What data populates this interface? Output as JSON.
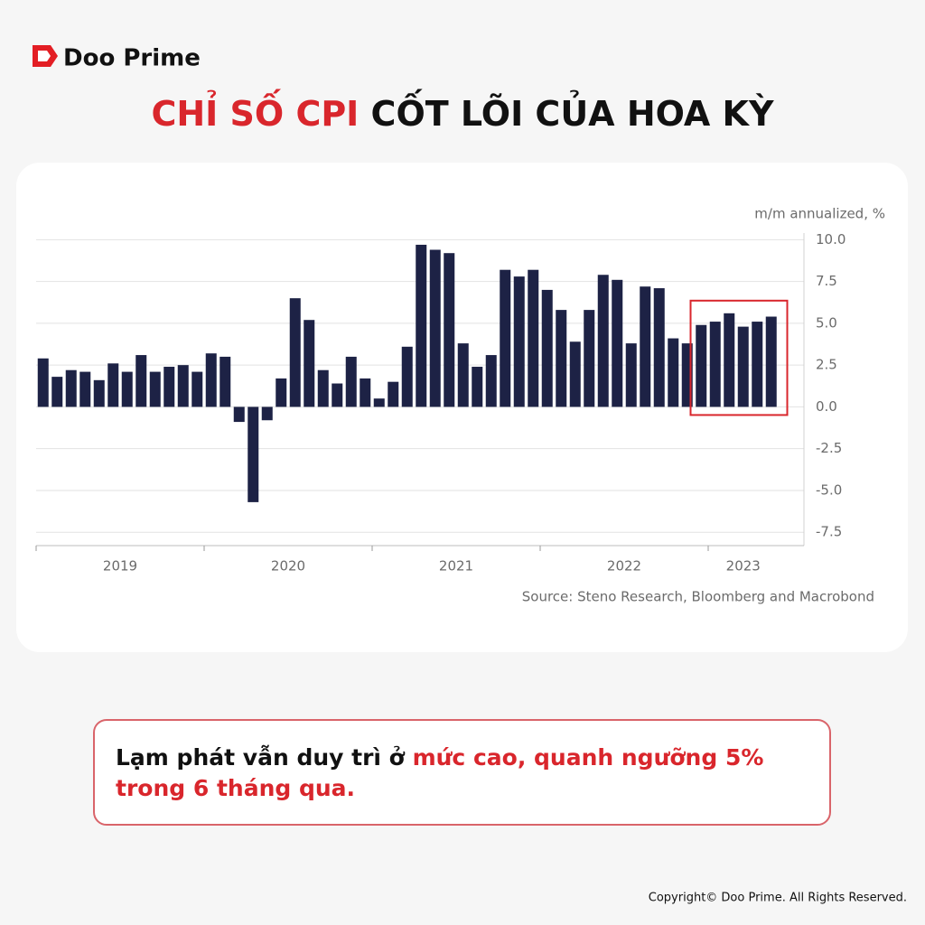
{
  "brand": "Doo Prime",
  "title": {
    "highlight": "CHỈ SỐ CPI",
    "rest": " CỐT LÕI CỦA HOA KỲ"
  },
  "chart_data": {
    "type": "bar",
    "unit_label": "m/m annualized, %",
    "source": "Source: Steno Research, Bloomberg and Macrobond",
    "categories": [
      null,
      null,
      null,
      null,
      null,
      null,
      null,
      null,
      null,
      null,
      null,
      null,
      null,
      null,
      null,
      null,
      null,
      null,
      null,
      null,
      null,
      null,
      null,
      null,
      null,
      null,
      null,
      null,
      null,
      null,
      null,
      null,
      null,
      null,
      null,
      null,
      null,
      null,
      null,
      null,
      null,
      null,
      null,
      null,
      null,
      null,
      null,
      null,
      null,
      null,
      null,
      null,
      null
    ],
    "year_labels": [
      "2019",
      "2020",
      "2021",
      "2022",
      "2023"
    ],
    "values": [
      2.9,
      1.8,
      2.2,
      2.1,
      1.6,
      2.6,
      2.1,
      3.1,
      2.1,
      2.4,
      2.5,
      2.1,
      3.2,
      3.0,
      -0.9,
      -5.7,
      -0.8,
      1.7,
      6.5,
      5.2,
      2.2,
      1.4,
      3.0,
      1.7,
      0.5,
      1.5,
      3.6,
      9.7,
      9.4,
      9.2,
      3.8,
      2.4,
      3.1,
      8.2,
      7.8,
      8.2,
      7.0,
      5.8,
      3.9,
      5.8,
      7.9,
      7.6,
      3.8,
      7.2,
      7.1,
      4.1,
      3.8,
      4.9,
      5.1,
      5.6,
      4.8,
      5.1,
      5.4
    ],
    "color": "#1d2245",
    "highlight_last": 6,
    "highlight_color": "#d9262c",
    "ylim": [
      -8.3,
      10.4
    ],
    "yticks": [
      {
        "value": 10,
        "label": "10.0"
      },
      7.5,
      {
        "value": 5,
        "label": "5.0"
      },
      2.5,
      {
        "value": 0,
        "label": "0.0"
      },
      -2.5,
      {
        "value": -5,
        "label": "-5.0"
      },
      -7.5
    ],
    "grid": true
  },
  "callout": {
    "plain": "Lạm phát vẫn duy trì ở ",
    "emphasis_1": "mức cao, quanh ngưỡng 5%",
    "emphasis_2": "trong 6 tháng qua."
  },
  "copyright": "Copyright© Doo Prime. All Rights Reserved."
}
